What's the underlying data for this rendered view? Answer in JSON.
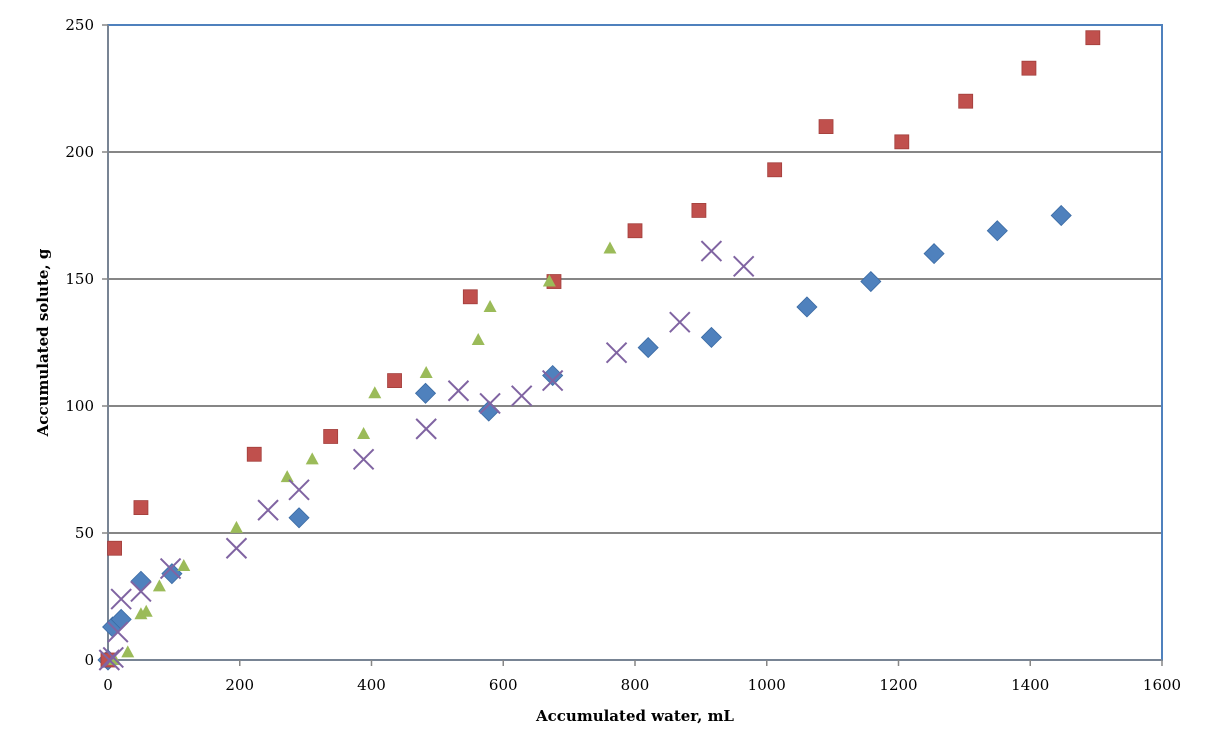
{
  "chart_data": {
    "type": "scatter",
    "title": "",
    "xlabel": "Accumulated water, mL",
    "ylabel": "Accumulated solute, g",
    "xlim": [
      0,
      1600
    ],
    "ylim": [
      0,
      250
    ],
    "x_ticks": [
      0,
      200,
      400,
      600,
      800,
      1000,
      1200,
      1400,
      1600
    ],
    "y_ticks": [
      0,
      50,
      100,
      150,
      200,
      250
    ],
    "grid": "horizontal",
    "legend": "none",
    "series": [
      {
        "marker": "diamond",
        "color": "#4F81BD",
        "points": [
          [
            0,
            0
          ],
          [
            7,
            13
          ],
          [
            20,
            16
          ],
          [
            50,
            31
          ],
          [
            97,
            34
          ],
          [
            290,
            56
          ],
          [
            482,
            105
          ],
          [
            578,
            98
          ],
          [
            675,
            112
          ],
          [
            820,
            123
          ],
          [
            916,
            127
          ],
          [
            1061,
            139
          ],
          [
            1158,
            149
          ],
          [
            1254,
            160
          ],
          [
            1350,
            169
          ],
          [
            1447,
            175
          ]
        ]
      },
      {
        "marker": "square",
        "color": "#C0504D",
        "points": [
          [
            0,
            0
          ],
          [
            10,
            44
          ],
          [
            50,
            60
          ],
          [
            222,
            81
          ],
          [
            338,
            88
          ],
          [
            435,
            110
          ],
          [
            550,
            143
          ],
          [
            677,
            149
          ],
          [
            800,
            169
          ],
          [
            897,
            177
          ],
          [
            1012,
            193
          ],
          [
            1090,
            210
          ],
          [
            1205,
            204
          ],
          [
            1302,
            220
          ],
          [
            1398,
            233
          ],
          [
            1495,
            245
          ]
        ]
      },
      {
        "marker": "triangle",
        "color": "#9BBB59",
        "points": [
          [
            10,
            0
          ],
          [
            30,
            3
          ],
          [
            50,
            18
          ],
          [
            58,
            19
          ],
          [
            78,
            29
          ],
          [
            115,
            37
          ],
          [
            195,
            52
          ],
          [
            272,
            72
          ],
          [
            310,
            79
          ],
          [
            388,
            89
          ],
          [
            405,
            105
          ],
          [
            483,
            113
          ],
          [
            562,
            126
          ],
          [
            580,
            139
          ],
          [
            670,
            149
          ],
          [
            762,
            162
          ]
        ]
      },
      {
        "marker": "x",
        "color": "#8064A2",
        "points": [
          [
            2,
            0
          ],
          [
            8,
            1
          ],
          [
            15,
            11
          ],
          [
            20,
            24
          ],
          [
            50,
            27
          ],
          [
            95,
            36
          ],
          [
            195,
            44
          ],
          [
            243,
            59
          ],
          [
            290,
            67
          ],
          [
            388,
            79
          ],
          [
            483,
            91
          ],
          [
            532,
            106
          ],
          [
            580,
            101
          ],
          [
            628,
            104
          ],
          [
            675,
            110
          ],
          [
            772,
            121
          ],
          [
            868,
            133
          ],
          [
            916,
            161
          ],
          [
            965,
            155
          ]
        ]
      }
    ]
  }
}
